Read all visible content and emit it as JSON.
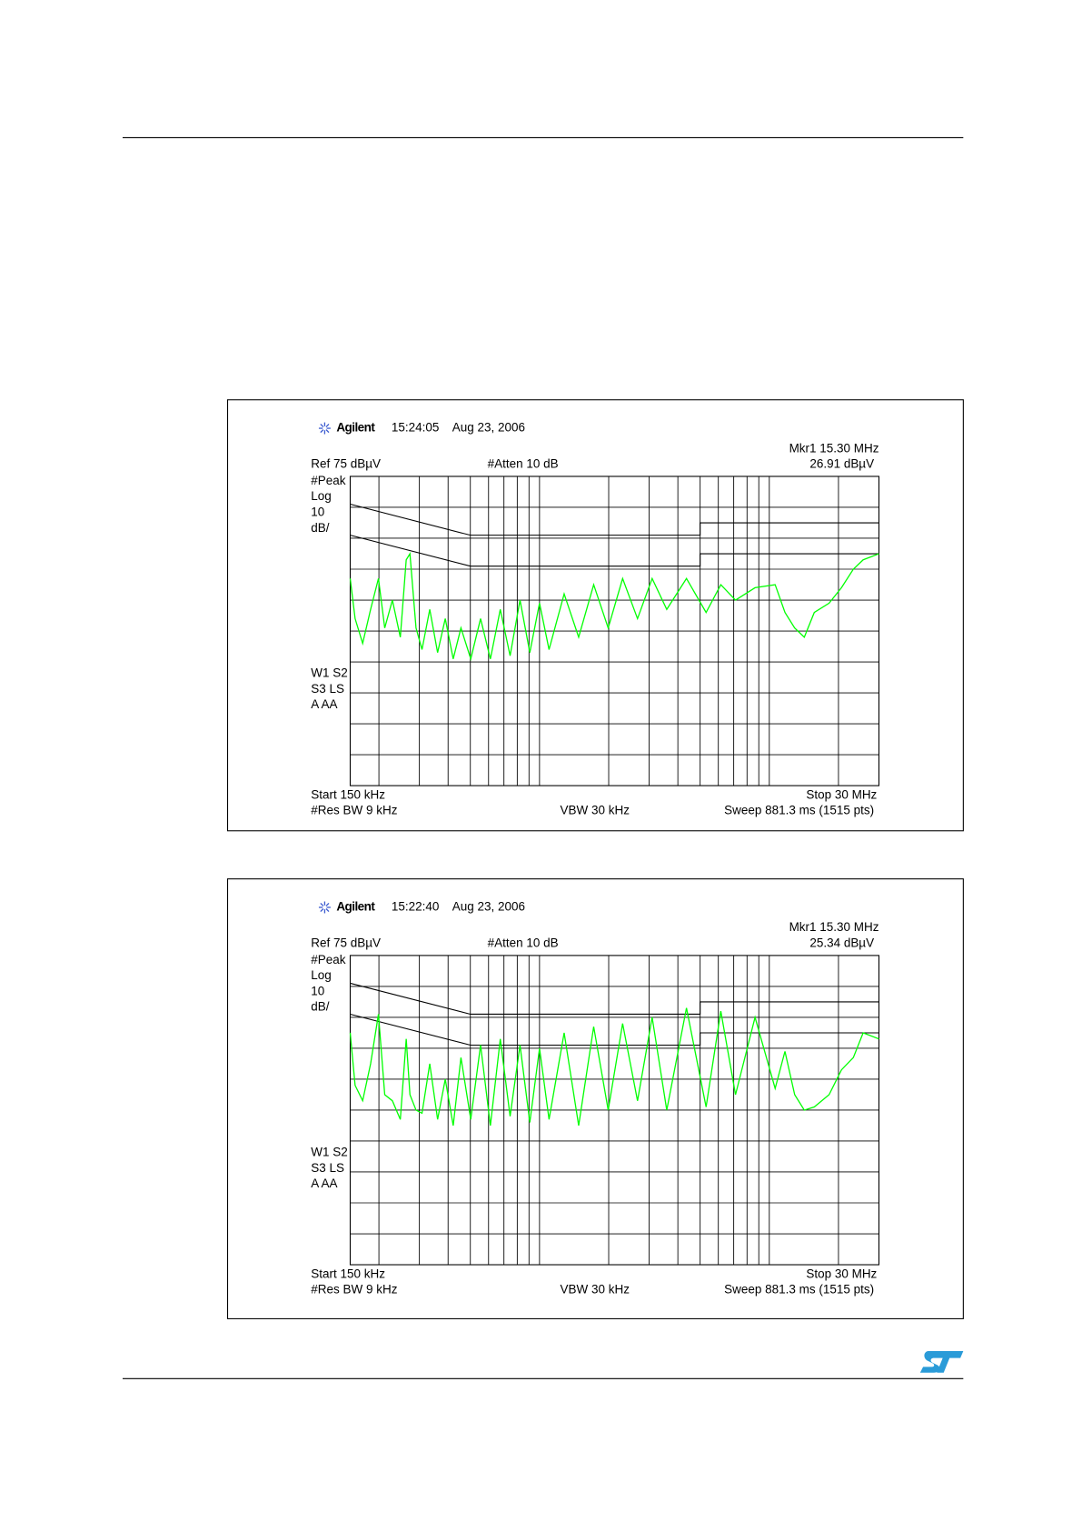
{
  "figures": [
    {
      "brand": "Agilent",
      "time": "15:24:05",
      "date": "Aug 23, 2006",
      "marker": "Mkr1  15.30 MHz",
      "marker_level": "26.91 dBµV",
      "ref": "Ref 75 dBµV",
      "atten": "#Atten 10 dB",
      "side_labels": [
        "#Peak",
        "Log",
        "10",
        "dB/"
      ],
      "status_labels": [
        "W1  S2",
        "S3  LS",
        "A  AA"
      ],
      "start": "Start 150 kHz",
      "stop": "Stop 30 MHz",
      "rbw": "#Res BW 9 kHz",
      "vbw": "VBW 30 kHz",
      "sweep": "Sweep 881.3 ms (1515 pts)",
      "xscale": "log",
      "xlim": [
        0.15,
        30
      ],
      "ylim": [
        -25,
        75
      ],
      "limits": [
        {
          "x": [
            0.15,
            0.5,
            5,
            5,
            30
          ],
          "values": [
            66,
            56,
            56,
            60,
            60
          ],
          "color": "#000000"
        },
        {
          "x": [
            0.15,
            0.5,
            5,
            5,
            30
          ],
          "values": [
            56,
            46,
            46,
            50,
            50
          ],
          "color": "#000000"
        }
      ],
      "trace": {
        "color": "#00ff00",
        "x": [
          0.15,
          0.1575,
          0.17,
          0.184,
          0.199,
          0.212,
          0.229,
          0.248,
          0.263,
          0.273,
          0.29,
          0.308,
          0.333,
          0.36,
          0.389,
          0.421,
          0.455,
          0.502,
          0.554,
          0.611,
          0.675,
          0.745,
          0.822,
          0.907,
          1.0,
          1.1,
          1.28,
          1.48,
          1.72,
          1.99,
          2.3,
          2.67,
          3.09,
          3.58,
          4.36,
          5.31,
          6.15,
          7.13,
          8.67,
          10.6,
          11.7,
          12.9,
          14.2,
          15.7,
          18.2,
          20.6,
          23.2,
          25.6,
          30
        ],
        "values": [
          42,
          29,
          21,
          32,
          42,
          26,
          35,
          23,
          48,
          50,
          26,
          19,
          32,
          18,
          29,
          16,
          26,
          16,
          29,
          16,
          32,
          17,
          35,
          18,
          34,
          19,
          37,
          23,
          40,
          26,
          42,
          29,
          42,
          32,
          42,
          31,
          40,
          35,
          39,
          40,
          31,
          26,
          23,
          31,
          34,
          39,
          45,
          48,
          50
        ]
      }
    },
    {
      "brand": "Agilent",
      "time": "15:22:40",
      "date": "Aug 23, 2006",
      "marker": "Mkr1  15.30 MHz",
      "marker_level": "25.34 dBµV",
      "ref": "Ref 75 dBµV",
      "atten": "#Atten 10 dB",
      "side_labels": [
        "#Peak",
        "Log",
        "10",
        "dB/"
      ],
      "status_labels": [
        "W1  S2",
        "S3  LS",
        "A  AA"
      ],
      "start": "Start 150 kHz",
      "stop": "Stop 30 MHz",
      "rbw": "#Res BW 9 kHz",
      "vbw": "VBW 30 kHz",
      "sweep": "Sweep 881.3 ms (1515 pts)",
      "xscale": "log",
      "xlim": [
        0.15,
        30
      ],
      "ylim": [
        -25,
        75
      ],
      "limits": [
        {
          "x": [
            0.15,
            0.5,
            5,
            5,
            30
          ],
          "values": [
            66,
            56,
            56,
            60,
            60
          ],
          "color": "#000000"
        },
        {
          "x": [
            0.15,
            0.5,
            5,
            5,
            30
          ],
          "values": [
            56,
            46,
            46,
            50,
            50
          ],
          "color": "#000000"
        }
      ],
      "trace": {
        "color": "#00ff00",
        "x": [
          0.15,
          0.1575,
          0.17,
          0.184,
          0.199,
          0.212,
          0.229,
          0.248,
          0.263,
          0.273,
          0.29,
          0.308,
          0.333,
          0.36,
          0.389,
          0.421,
          0.455,
          0.502,
          0.554,
          0.611,
          0.675,
          0.745,
          0.822,
          0.907,
          1.0,
          1.1,
          1.28,
          1.48,
          1.72,
          1.99,
          2.3,
          2.67,
          3.09,
          3.58,
          4.36,
          5.31,
          6.15,
          7.13,
          8.67,
          10.6,
          11.7,
          12.9,
          14.2,
          15.7,
          18.2,
          20.6,
          23.2,
          25.6,
          30
        ],
        "values": [
          50,
          33,
          28,
          40,
          56,
          30,
          28,
          22,
          48,
          30,
          25,
          24,
          40,
          22,
          35,
          20,
          42,
          22,
          46,
          20,
          48,
          23,
          46,
          21,
          45,
          22,
          50,
          20,
          52,
          25,
          53,
          28,
          55,
          25,
          58,
          26,
          57,
          30,
          55,
          32,
          44,
          30,
          25,
          26,
          30,
          38,
          42,
          50,
          48
        ]
      }
    }
  ]
}
